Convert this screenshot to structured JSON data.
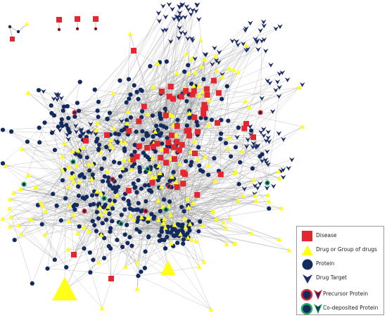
{
  "legend": {
    "items": [
      {
        "label": "Disease",
        "marker": "red-square-icon"
      },
      {
        "label": "Drug or Group of drugs",
        "marker": "yellow-triangle-icon"
      },
      {
        "label": "Protein",
        "marker": "navy-circle-icon"
      },
      {
        "label": "Drug Target",
        "marker": "navy-chevron-icon"
      },
      {
        "label": "Precursor Protein",
        "marker": "red-ring-circle-and-chevron-icon"
      },
      {
        "label": "Co-deposited Protein",
        "marker": "green-ring-circle-and-chevron-icon"
      }
    ]
  },
  "colors": {
    "disease": "#e3262f",
    "drug": "#ffff1a",
    "protein": "#132a5e",
    "drug_target": "#1d2d66",
    "precursor_ring": "#e3262f",
    "codeposited_ring": "#1fae5a",
    "edge": "#8f8f8f"
  }
}
